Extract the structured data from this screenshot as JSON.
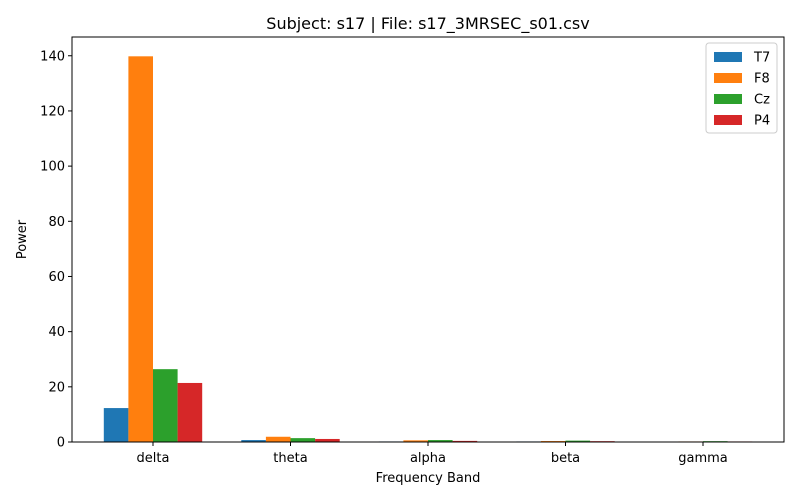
{
  "chart_data": {
    "type": "bar",
    "title": "Subject: s17 | File: s17_3MRSEC_s01.csv",
    "xlabel": "Frequency Band",
    "ylabel": "Power",
    "categories": [
      "delta",
      "theta",
      "alpha",
      "beta",
      "gamma"
    ],
    "series": [
      {
        "name": "T7",
        "color": "#1f77b4",
        "values": [
          12.3,
          0.7,
          0.2,
          0.2,
          0.15
        ]
      },
      {
        "name": "F8",
        "color": "#ff7f0e",
        "values": [
          139.8,
          1.9,
          0.6,
          0.35,
          0.2
        ]
      },
      {
        "name": "Cz",
        "color": "#2ca02c",
        "values": [
          26.4,
          1.4,
          0.7,
          0.5,
          0.3
        ]
      },
      {
        "name": "P4",
        "color": "#d62728",
        "values": [
          21.4,
          1.1,
          0.4,
          0.3,
          0.2
        ]
      }
    ],
    "ylim": [
      0,
      146.8
    ],
    "yticks": [
      0,
      20,
      40,
      60,
      80,
      100,
      120,
      140
    ],
    "legend_position": "top-right",
    "grid": false
  }
}
